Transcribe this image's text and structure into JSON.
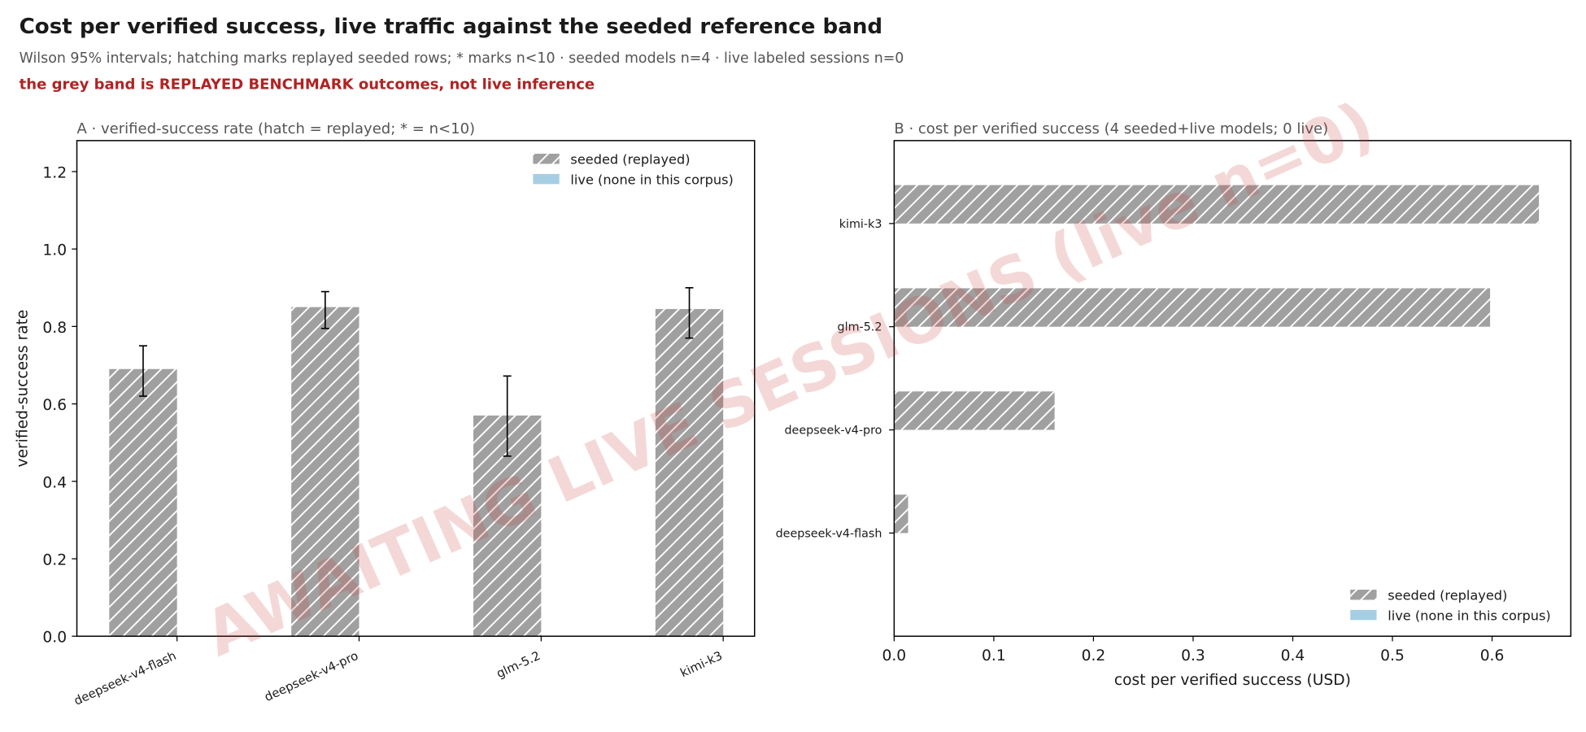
{
  "header": {
    "title": "Cost per verified success, live traffic against the seeded reference band",
    "subtitle": "Wilson 95% intervals; hatching marks replayed seeded rows; * marks n<10 · seeded models n=4 · live labeled sessions n=0",
    "warning": "the grey band is REPLAYED BENCHMARK outcomes, not live inference"
  },
  "watermark": "AWAITING LIVE SESSIONS (live n=0)",
  "chart_data": [
    {
      "type": "bar",
      "title": "A · verified-success rate (hatch = replayed; * = n<10)",
      "ylabel": "verified-success rate",
      "categories": [
        "deepseek-v4-flash",
        "deepseek-v4-pro",
        "glm-5.2",
        "kimi-k3"
      ],
      "series": [
        {
          "name": "seeded (replayed)",
          "color": "#a0a0a0",
          "hatch": true,
          "values": [
            0.69,
            0.85,
            0.57,
            0.845
          ],
          "ci_low": [
            0.62,
            0.795,
            0.465,
            0.77
          ],
          "ci_high": [
            0.75,
            0.89,
            0.672,
            0.9
          ]
        },
        {
          "name": "live (none in this corpus)",
          "color": "#a6cee3",
          "hatch": false,
          "values": [
            null,
            null,
            null,
            null
          ]
        }
      ],
      "ylim": [
        0,
        1.28
      ],
      "yticks": [
        {
          "value": 0,
          "label": "0.0"
        },
        {
          "value": 0.2,
          "label": "0.2"
        },
        {
          "value": 0.4,
          "label": "0.4"
        },
        {
          "value": 0.6,
          "label": "0.6"
        },
        {
          "value": 0.8,
          "label": "0.8"
        },
        {
          "value": 1,
          "label": "1.0"
        },
        {
          "value": 1.2,
          "label": "1.2"
        }
      ],
      "legend": "upper right"
    },
    {
      "type": "barh",
      "title": "B · cost per verified success (4 seeded+live models; 0 live)",
      "xlabel": "cost per verified success (USD)",
      "categories": [
        "deepseek-v4-flash",
        "deepseek-v4-pro",
        "glm-5.2",
        "kimi-k3"
      ],
      "series": [
        {
          "name": "seeded (replayed)",
          "color": "#a0a0a0",
          "hatch": true,
          "values": [
            0.014,
            0.161,
            0.598,
            0.647
          ]
        },
        {
          "name": "live (none in this corpus)",
          "color": "#a6cee3",
          "hatch": false,
          "values": [
            null,
            null,
            null,
            null
          ]
        }
      ],
      "xlim": [
        0,
        0.679
      ],
      "xticks": [
        {
          "value": 0,
          "label": "0.0"
        },
        0.1,
        0.2,
        0.3,
        0.4,
        0.5,
        0.6
      ],
      "legend": "lower right"
    }
  ]
}
